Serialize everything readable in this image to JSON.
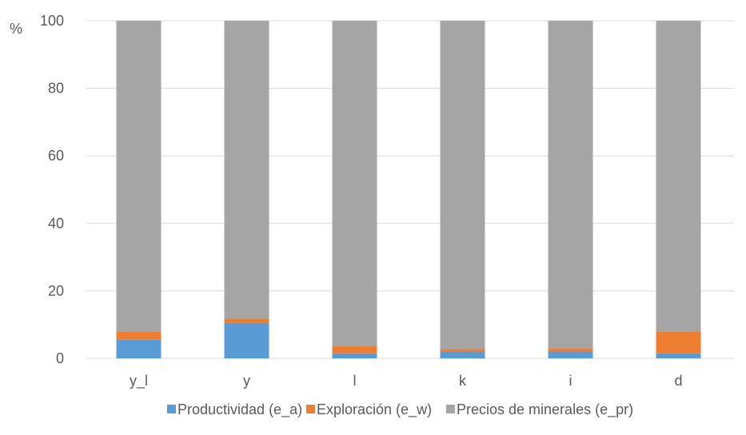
{
  "chart_data": {
    "type": "bar",
    "stacked": true,
    "unit_label": "%",
    "title": "",
    "xlabel": "",
    "ylabel": "",
    "categories": [
      "y_l",
      "y",
      "l",
      "k",
      "i",
      "d"
    ],
    "series": [
      {
        "name": "Productividad (e_a)",
        "color": "#5b9bd5",
        "values": [
          5.5,
          10.5,
          1.5,
          2.0,
          2.0,
          1.5
        ]
      },
      {
        "name": "Exploración (e_w)",
        "color": "#ed7d31",
        "values": [
          2.3,
          1.2,
          2.2,
          0.8,
          1.0,
          6.5
        ]
      },
      {
        "name": "Precios de minerales (e_pr)",
        "color": "#a5a5a5",
        "values": [
          92.2,
          88.3,
          96.3,
          97.2,
          97.0,
          92.0
        ]
      }
    ],
    "ylim": [
      0,
      100
    ],
    "yticks": [
      0,
      20,
      40,
      60,
      80,
      100
    ],
    "grid": true,
    "legend_position": "bottom"
  }
}
